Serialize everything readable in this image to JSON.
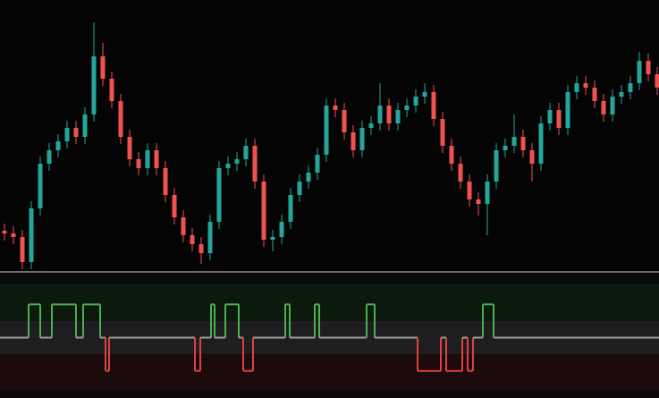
{
  "chart_data": [
    {
      "type": "candlestick",
      "xlim": [
        -0.5,
        73.2
      ],
      "ylim": [
        0,
        300
      ],
      "up_color": "#26a69a",
      "down_color": "#ef5350",
      "open": [
        45,
        42,
        38,
        10,
        70,
        120,
        135,
        145,
        160,
        150,
        175,
        240,
        215,
        190,
        150,
        125,
        115,
        135,
        115,
        85,
        60,
        40,
        30,
        20,
        55,
        115,
        120,
        125,
        140,
        100,
        35,
        38,
        55,
        85,
        100,
        110,
        130,
        185,
        180,
        155,
        135,
        160,
        165,
        185,
        165,
        180,
        185,
        195,
        200,
        170,
        140,
        120,
        100,
        80,
        75,
        100,
        135,
        140,
        150,
        135,
        120,
        165,
        180,
        160,
        200,
        210,
        205,
        190,
        175,
        195,
        200,
        210,
        235,
        220
      ],
      "high": [
        53,
        50,
        46,
        78,
        128,
        143,
        153,
        168,
        168,
        183,
        278,
        255,
        223,
        198,
        158,
        133,
        143,
        143,
        123,
        93,
        68,
        48,
        38,
        63,
        123,
        128,
        133,
        148,
        148,
        108,
        46,
        63,
        93,
        108,
        118,
        138,
        193,
        193,
        188,
        163,
        168,
        173,
        210,
        193,
        188,
        193,
        203,
        210,
        208,
        178,
        148,
        128,
        108,
        88,
        108,
        143,
        148,
        175,
        158,
        143,
        173,
        188,
        188,
        208,
        218,
        218,
        213,
        198,
        203,
        208,
        218,
        245,
        243,
        228
      ],
      "low": [
        34,
        30,
        2,
        2,
        62,
        112,
        127,
        137,
        142,
        142,
        167,
        207,
        182,
        142,
        117,
        107,
        107,
        107,
        77,
        52,
        32,
        22,
        8,
        12,
        47,
        107,
        112,
        117,
        92,
        27,
        22,
        30,
        47,
        77,
        92,
        102,
        122,
        172,
        147,
        127,
        127,
        152,
        157,
        157,
        157,
        172,
        177,
        187,
        162,
        132,
        112,
        92,
        72,
        62,
        40,
        92,
        127,
        132,
        127,
        100,
        112,
        157,
        152,
        152,
        192,
        197,
        182,
        167,
        167,
        187,
        192,
        202,
        212,
        197
      ],
      "close": [
        42,
        38,
        10,
        70,
        120,
        135,
        145,
        160,
        150,
        175,
        240,
        215,
        190,
        150,
        125,
        115,
        135,
        115,
        85,
        60,
        40,
        30,
        20,
        55,
        115,
        120,
        125,
        140,
        100,
        35,
        38,
        55,
        85,
        100,
        110,
        130,
        185,
        180,
        155,
        135,
        160,
        165,
        185,
        165,
        180,
        185,
        195,
        200,
        170,
        140,
        120,
        100,
        80,
        75,
        100,
        135,
        140,
        150,
        135,
        120,
        165,
        180,
        160,
        200,
        210,
        205,
        190,
        175,
        195,
        200,
        210,
        235,
        220,
        205
      ]
    },
    {
      "type": "step",
      "xlim": [
        -0.5,
        73.2
      ],
      "ylim": [
        -1.6,
        1.6
      ],
      "bands": [
        {
          "from": 0.5,
          "to": 1.6,
          "color": "#0c1a0e"
        },
        {
          "from": -0.5,
          "to": 0.5,
          "color": "#1e1e20"
        },
        {
          "from": -1.6,
          "to": -0.5,
          "color": "#1c0b0c"
        }
      ],
      "colors": {
        "up": "#4caf50",
        "flat": "#9e9e9e",
        "down": "#e04040"
      },
      "x": [
        -0.5,
        2.7,
        4,
        5.3,
        8,
        8.8,
        10.7,
        11.3,
        11.7,
        21.3,
        21.9,
        23.1,
        23.5,
        24.7,
        26.2,
        26.7,
        27.8,
        31.4,
        31.9,
        34.7,
        35.2,
        40.5,
        41.4,
        46.2,
        48.8,
        49.4,
        51.2,
        51.8,
        52.4,
        53.5,
        54.7,
        73.2
      ],
      "values": [
        0,
        1,
        0,
        1,
        0,
        1,
        0,
        -1,
        0,
        -1,
        0,
        1,
        0,
        1,
        0,
        -1,
        0,
        1,
        0,
        1,
        0,
        1,
        0,
        -1,
        0,
        -1,
        0,
        -1,
        0,
        1,
        0,
        0
      ]
    }
  ]
}
